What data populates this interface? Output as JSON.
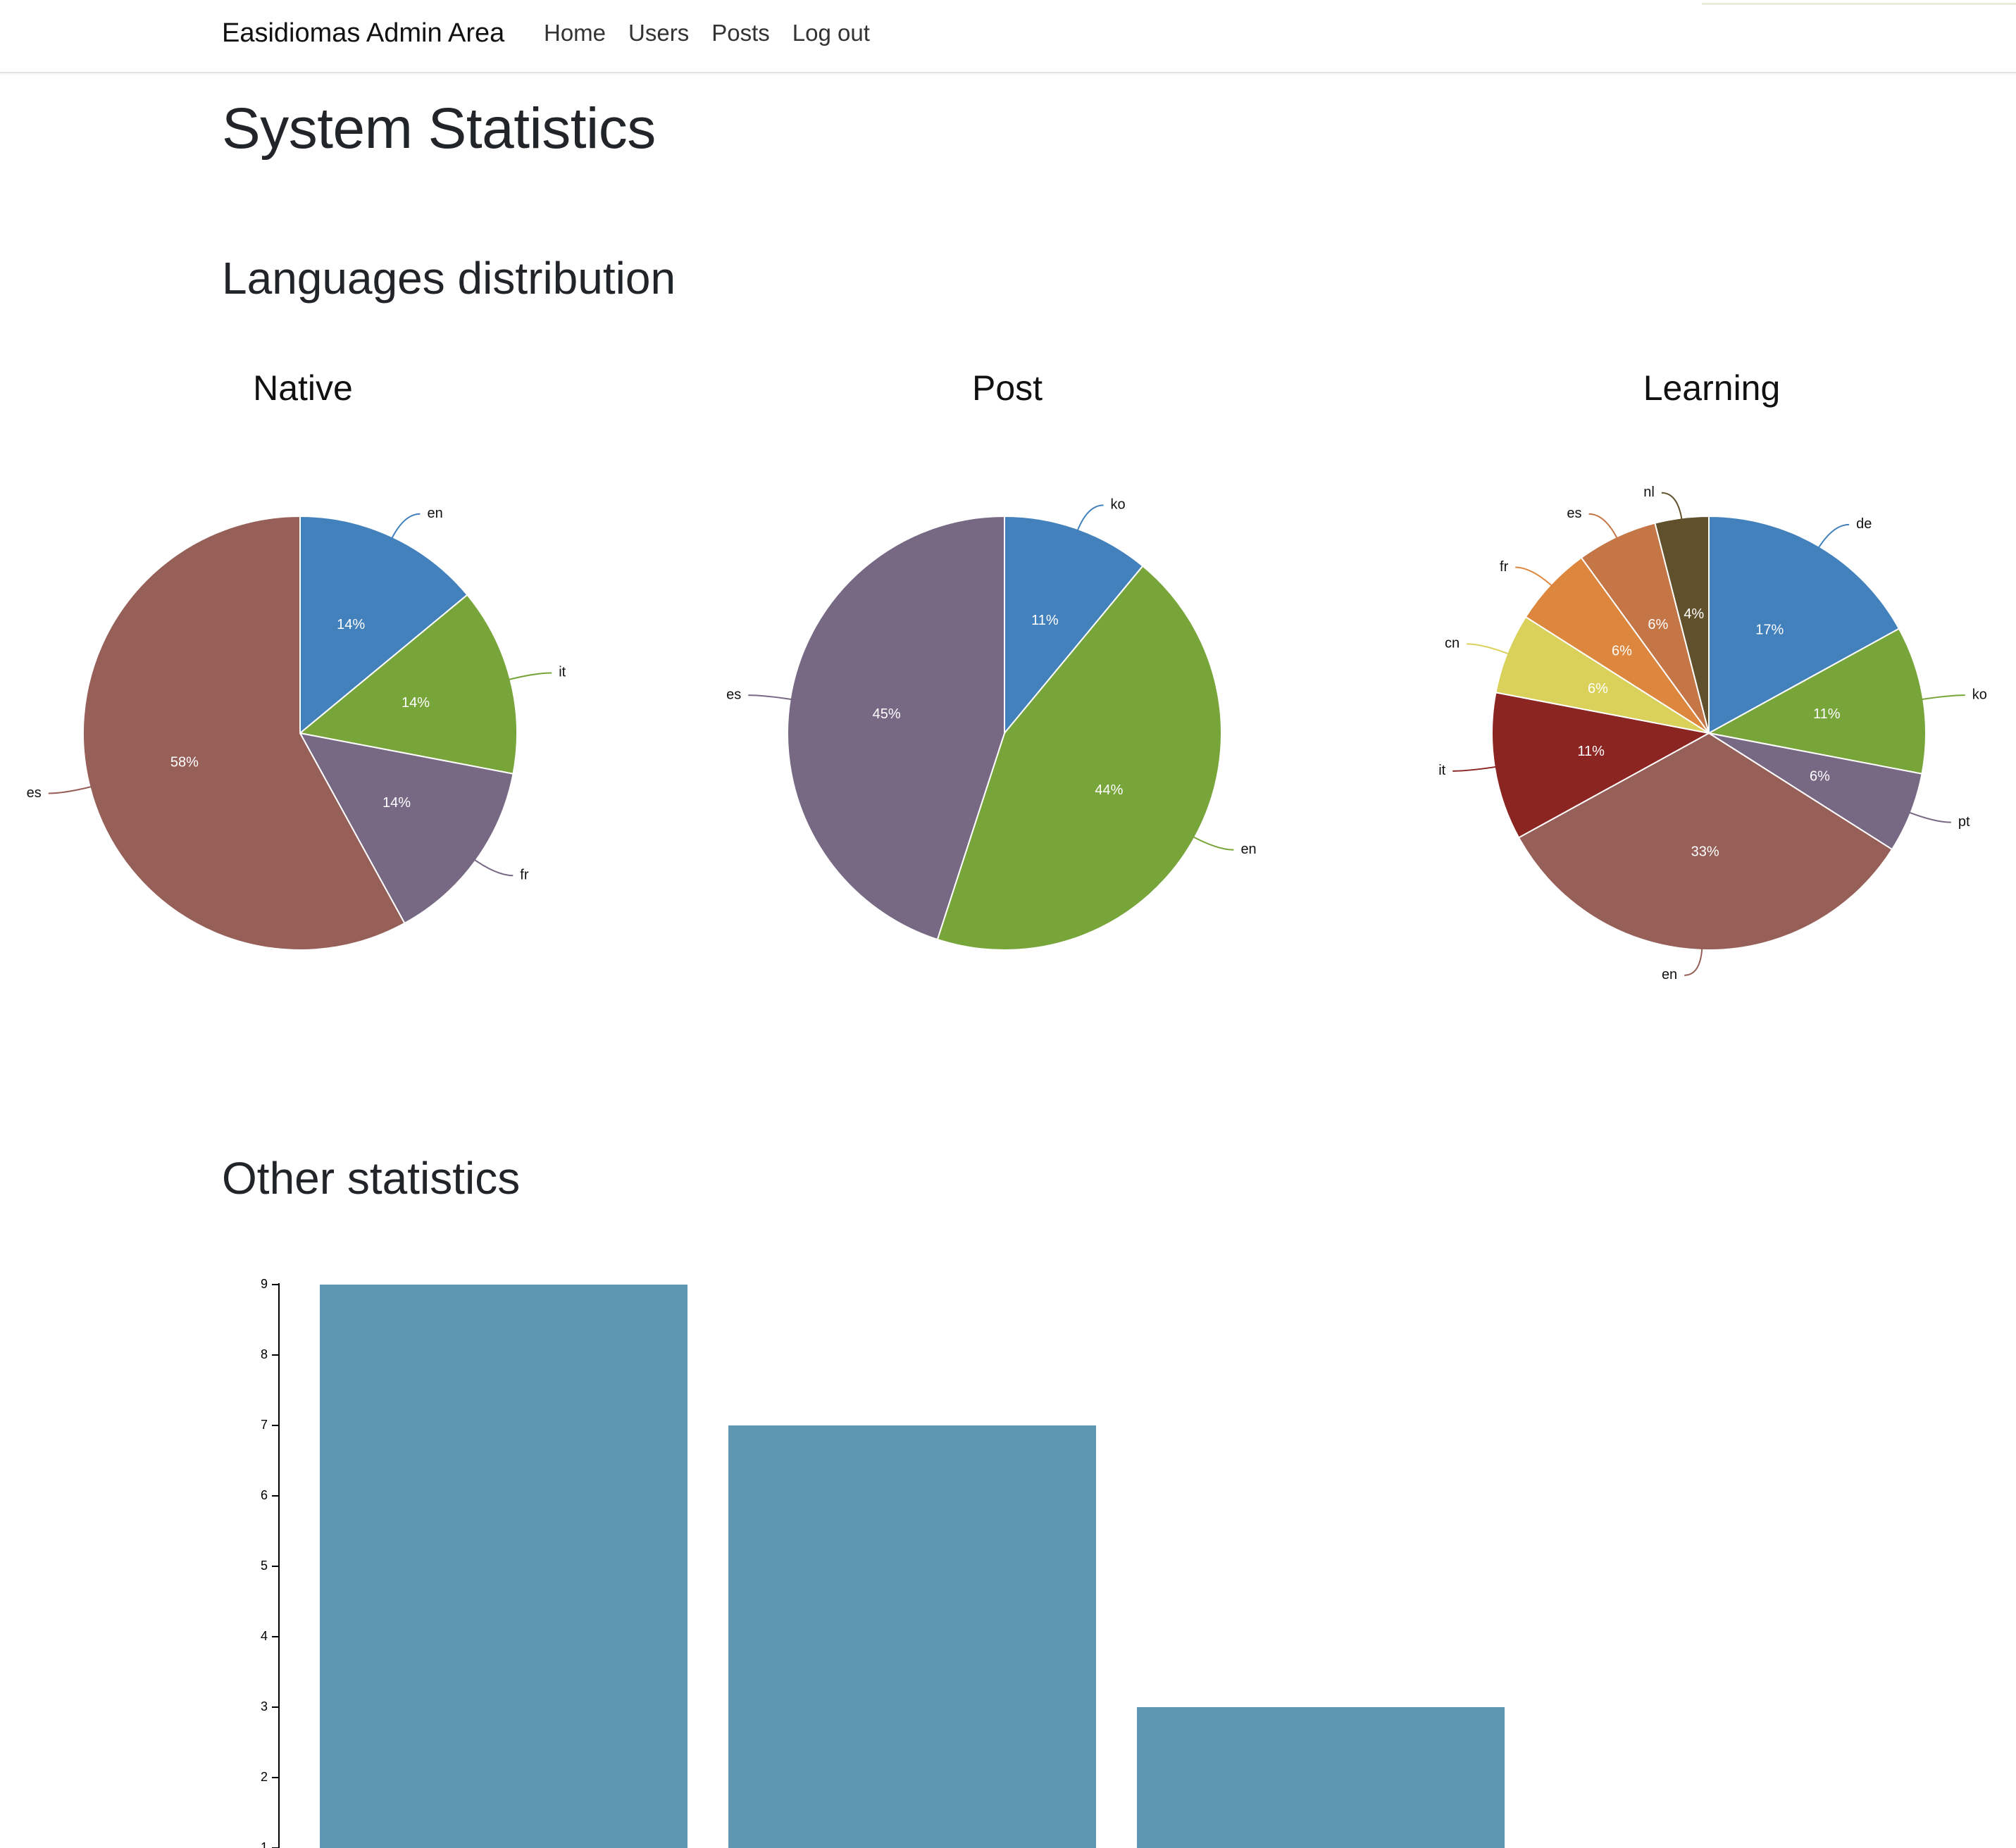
{
  "navbar": {
    "brand": "Easidiomas Admin Area",
    "links": [
      {
        "label": "Home"
      },
      {
        "label": "Users"
      },
      {
        "label": "Posts"
      },
      {
        "label": "Log out"
      }
    ]
  },
  "page": {
    "title": "System Statistics",
    "section_languages": "Languages distribution",
    "section_other": "Other statistics"
  },
  "chart_data": [
    {
      "type": "pie",
      "title": "Native",
      "slices": [
        {
          "label": "en",
          "value": 14,
          "pct_label": "14%",
          "color": "#4281bc"
        },
        {
          "label": "it",
          "value": 14,
          "pct_label": "14%",
          "color": "#77a53a"
        },
        {
          "label": "fr",
          "value": 14,
          "pct_label": "14%",
          "color": "#776884"
        },
        {
          "label": "es",
          "value": 58,
          "pct_label": "58%",
          "color": "#965f58"
        }
      ]
    },
    {
      "type": "pie",
      "title": "Post",
      "slices": [
        {
          "label": "ko",
          "value": 11,
          "pct_label": "11%",
          "color": "#4281bc"
        },
        {
          "label": "en",
          "value": 44,
          "pct_label": "44%",
          "color": "#77a53a"
        },
        {
          "label": "es",
          "value": 45,
          "pct_label": "45%",
          "color": "#776884"
        }
      ]
    },
    {
      "type": "pie",
      "title": "Learning",
      "slices": [
        {
          "label": "de",
          "value": 17,
          "pct_label": "17%",
          "color": "#4281bc"
        },
        {
          "label": "ko",
          "value": 11,
          "pct_label": "11%",
          "color": "#77a53a"
        },
        {
          "label": "pt",
          "value": 6,
          "pct_label": "6%",
          "color": "#776884"
        },
        {
          "label": "en",
          "value": 33,
          "pct_label": "33%",
          "color": "#965f58"
        },
        {
          "label": "it",
          "value": 11,
          "pct_label": "11%",
          "color": "#8b2522"
        },
        {
          "label": "cn",
          "value": 6,
          "pct_label": "6%",
          "color": "#dad15a"
        },
        {
          "label": "fr",
          "value": 6,
          "pct_label": "6%",
          "color": "#dc873d"
        },
        {
          "label": "es",
          "value": 6,
          "pct_label": "6%",
          "color": "#c47646"
        },
        {
          "label": "nl",
          "value": 4,
          "pct_label": "4%",
          "color": "#60512c"
        }
      ]
    },
    {
      "type": "bar",
      "values": [
        9,
        7,
        3
      ],
      "ylim": [
        0,
        9
      ],
      "yticks": [
        "1",
        "2",
        "3",
        "4",
        "5",
        "6",
        "7",
        "8",
        "9"
      ],
      "bar_color": "#5e97b1"
    }
  ]
}
